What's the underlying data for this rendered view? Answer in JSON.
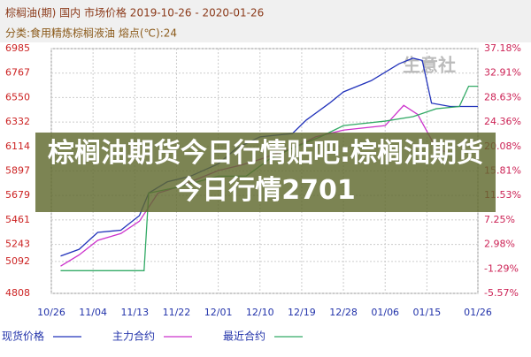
{
  "chart_data": {
    "type": "line",
    "title": "棕榈油(期) 国内 市场价格 2019-10-26 - 2020-01-26",
    "subtitle": "分类:食用精炼棕榈液油 熔点(℃):24",
    "watermark": "生意社",
    "overlay_text": "棕榈油期货今日行情贴吧:棕榈油期货今日行情2701",
    "xlim": [
      "10/26",
      "01/26"
    ],
    "xticks": [
      "10/26",
      "11/04",
      "11/13",
      "11/22",
      "12/01",
      "12/10",
      "12/19",
      "12/28",
      "01/06",
      "01/15",
      "01/26"
    ],
    "ylim": [
      4808,
      6985
    ],
    "yticks": [
      4808,
      5092,
      5243,
      5461,
      5679,
      5897,
      6114,
      6332,
      6550,
      6767,
      6985
    ],
    "y2lim": [
      -5.57,
      37.18
    ],
    "y2ticks": [
      {
        "value": -5.57,
        "label": "-5.57%"
      },
      {
        "value": -1.29,
        "label": "-1.29%"
      },
      {
        "value": 2.98,
        "label": "2.98%"
      },
      {
        "value": 7.25,
        "label": "7.25%"
      },
      {
        "value": 11.53,
        "label": "11.53%"
      },
      {
        "value": 15.81,
        "label": "15.81%"
      },
      {
        "value": 20.08,
        "label": "20.08%"
      },
      {
        "value": 24.36,
        "label": "24.36%"
      },
      {
        "value": 28.63,
        "label": "28.63%"
      },
      {
        "value": 32.91,
        "label": "32.91%"
      },
      {
        "value": 37.18,
        "label": "37.18%"
      }
    ],
    "grid": true,
    "series": [
      {
        "name": "现货价格",
        "color": "#2233bb",
        "x": [
          "10/28",
          "11/01",
          "11/05",
          "11/10",
          "11/14",
          "11/16",
          "11/20",
          "11/25",
          "12/01",
          "12/05",
          "12/10",
          "12/17",
          "12/20",
          "12/25",
          "12/28",
          "01/03",
          "01/09",
          "01/12",
          "01/14",
          "01/16",
          "01/20",
          "01/26"
        ],
        "values": [
          5140,
          5200,
          5350,
          5370,
          5500,
          5700,
          5800,
          5850,
          5960,
          6100,
          6200,
          6230,
          6350,
          6500,
          6600,
          6700,
          6850,
          6900,
          6880,
          6500,
          6470,
          6470
        ]
      },
      {
        "name": "主力合约",
        "color": "#cc33cc",
        "x": [
          "10/28",
          "11/01",
          "11/05",
          "11/10",
          "11/14",
          "11/18",
          "11/22",
          "12/01",
          "12/06",
          "12/10",
          "12/17",
          "12/22",
          "12/28",
          "01/06",
          "01/10",
          "01/13",
          "01/17",
          "01/20"
        ],
        "values": [
          5050,
          5150,
          5280,
          5340,
          5450,
          5700,
          5750,
          5900,
          5950,
          6000,
          6100,
          6200,
          6260,
          6300,
          6480,
          6400,
          6100,
          6050
        ]
      },
      {
        "name": "最近合约",
        "color": "#33aa66",
        "x": [
          "10/28",
          "11/15",
          "11/16",
          "11/22",
          "12/01",
          "12/07",
          "12/12",
          "12/17",
          "12/23",
          "12/28",
          "01/06",
          "01/12",
          "01/17",
          "01/22",
          "01/24",
          "01/26"
        ],
        "values": [
          5010,
          5010,
          5700,
          5750,
          5850,
          5850,
          6000,
          6100,
          6200,
          6300,
          6340,
          6380,
          6450,
          6470,
          6650,
          6650
        ]
      }
    ]
  }
}
